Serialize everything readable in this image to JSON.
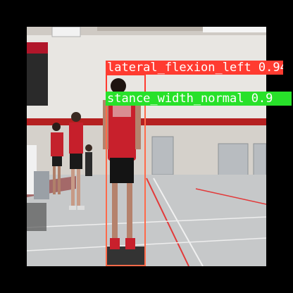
{
  "image": {
    "description_icon": "gym-photo-icon"
  },
  "detections": [
    {
      "label": "lateral_flexion_left",
      "score": "0.94",
      "color": "#ff3b30"
    },
    {
      "label": "stance_width_normal",
      "score": "0.9",
      "color": "#28e12a"
    }
  ],
  "labels": {
    "lateral": "lateral_flexion_left 0.94",
    "stance": "stance_width_normal 0.9"
  },
  "colors": {
    "background": "#000000",
    "box_red": "#ff3b30",
    "label_green": "#28e12a",
    "label_text": "#ffffff"
  }
}
